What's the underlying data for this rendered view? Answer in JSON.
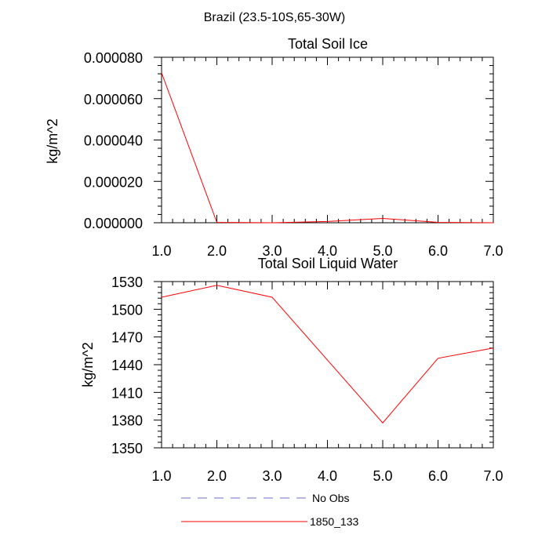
{
  "page_title": "Brazil (23.5-10S,65-30W)",
  "legend": [
    {
      "label": "No Obs",
      "color": "#6b6bd6",
      "style": "dashed"
    },
    {
      "label": "1850_133",
      "color": "#ff0000",
      "style": "solid"
    }
  ],
  "chart_data": [
    {
      "type": "line",
      "title": "Total Soil Ice",
      "xlabel": "",
      "ylabel": "kg/m^2",
      "xlim": [
        1.0,
        7.0
      ],
      "ylim": [
        0.0,
        8e-05
      ],
      "xticks": [
        "1.0",
        "2.0",
        "3.0",
        "4.0",
        "5.0",
        "6.0",
        "7.0"
      ],
      "yticks": [
        "0.000000",
        "0.000020",
        "0.000040",
        "0.000060",
        "0.000080"
      ],
      "ytick_values": [
        0.0,
        2e-05,
        4e-05,
        6e-05,
        8e-05
      ],
      "grid": false,
      "series": [
        {
          "name": "1850_133",
          "color": "#ff0000",
          "x": [
            1,
            2,
            3,
            4,
            5,
            6,
            7
          ],
          "y": [
            7.25e-05,
            2e-07,
            0.0,
            6e-07,
            2.1e-06,
            2e-07,
            0.0
          ]
        }
      ]
    },
    {
      "type": "line",
      "title": "Total Soil Liquid Water",
      "xlabel": "",
      "ylabel": "kg/m^2",
      "xlim": [
        1.0,
        7.0
      ],
      "ylim": [
        1350,
        1530
      ],
      "xticks": [
        "1.0",
        "2.0",
        "3.0",
        "4.0",
        "5.0",
        "6.0",
        "7.0"
      ],
      "yticks": [
        "1350",
        "1380",
        "1410",
        "1440",
        "1470",
        "1500",
        "1530"
      ],
      "ytick_values": [
        1350,
        1380,
        1410,
        1440,
        1470,
        1500,
        1530
      ],
      "grid": false,
      "series": [
        {
          "name": "1850_133",
          "color": "#ff0000",
          "x": [
            1,
            2,
            3,
            4,
            5,
            6,
            7
          ],
          "y": [
            1513,
            1526,
            1513,
            1445,
            1377,
            1447,
            1458
          ]
        }
      ]
    }
  ]
}
